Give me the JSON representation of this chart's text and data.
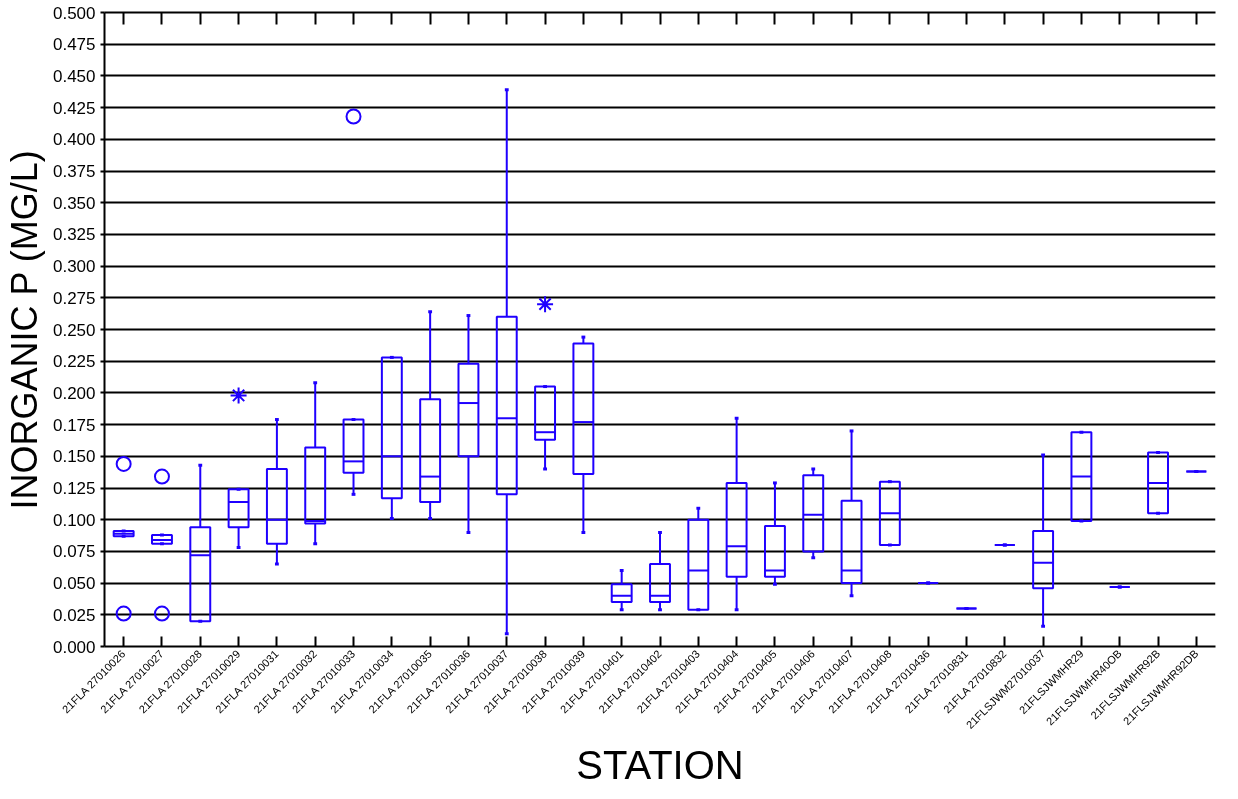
{
  "chart_data": {
    "type": "box",
    "xlabel": "STATION",
    "ylabel": "INORGANIC P (MG/L)",
    "categories": [
      "21FLA 27010026",
      "21FLA 27010027",
      "21FLA 27010028",
      "21FLA 27010029",
      "21FLA 27010031",
      "21FLA 27010032",
      "21FLA 27010033",
      "21FLA 27010034",
      "21FLA 27010035",
      "21FLA 27010036",
      "21FLA 27010037",
      "21FLA 27010038",
      "21FLA 27010039",
      "21FLA 27010401",
      "21FLA 27010402",
      "21FLA 27010403",
      "21FLA 27010404",
      "21FLA 27010405",
      "21FLA 27010406",
      "21FLA 27010407",
      "21FLA 27010408",
      "21FLA 27010436",
      "21FLA 27010831",
      "21FLA 27010832",
      "21FLSJWM27010037",
      "21FLSJWMHR29",
      "21FLSJWMHR40OB",
      "21FLSJWMHR92B",
      "21FLSJWMHR92DB"
    ],
    "series": [
      {
        "color": "#1f00ff",
        "marker": "circle",
        "boxes": [
          {
            "low": 0.087,
            "q1": 0.087,
            "median": 0.089,
            "q3": 0.091,
            "high": 0.091,
            "outliers": [
              0.026,
              0.144
            ]
          },
          {
            "low": 0.081,
            "q1": 0.081,
            "median": 0.084,
            "q3": 0.088,
            "high": 0.088,
            "outliers": [
              0.026,
              0.134
            ]
          },
          {
            "low": 0.02,
            "q1": 0.02,
            "median": 0.072,
            "q3": 0.094,
            "high": 0.143
          },
          {
            "low": 0.078,
            "q1": 0.094,
            "median": 0.114,
            "q3": 0.124,
            "high": 0.124
          },
          {
            "low": 0.065,
            "q1": 0.081,
            "median": 0.1,
            "q3": 0.14,
            "high": 0.179
          },
          {
            "low": 0.081,
            "q1": 0.097,
            "median": 0.099,
            "q3": 0.157,
            "high": 0.208
          },
          {
            "low": 0.12,
            "q1": 0.137,
            "median": 0.146,
            "q3": 0.179,
            "high": 0.179,
            "outliers": [
              0.418
            ]
          },
          {
            "low": 0.101,
            "q1": 0.117,
            "median": 0.15,
            "q3": 0.228,
            "high": 0.228
          },
          {
            "low": 0.101,
            "q1": 0.114,
            "median": 0.134,
            "q3": 0.195,
            "high": 0.264
          },
          {
            "low": 0.09,
            "q1": 0.15,
            "median": 0.192,
            "q3": 0.223,
            "high": 0.261
          },
          {
            "low": 0.01,
            "q1": 0.12,
            "median": 0.18,
            "q3": 0.26,
            "high": 0.439
          },
          {
            "low": 0.14,
            "q1": 0.163,
            "median": 0.169,
            "q3": 0.205,
            "high": 0.205
          },
          {
            "low": 0.09,
            "q1": 0.136,
            "median": 0.177,
            "q3": 0.239,
            "high": 0.244
          },
          {
            "low": 0.029,
            "q1": 0.035,
            "median": 0.04,
            "q3": 0.049,
            "high": 0.06
          },
          {
            "low": 0.029,
            "q1": 0.035,
            "median": 0.04,
            "q3": 0.065,
            "high": 0.09
          },
          {
            "low": 0.029,
            "q1": 0.029,
            "median": 0.06,
            "q3": 0.1,
            "high": 0.109
          },
          {
            "low": 0.029,
            "q1": 0.055,
            "median": 0.079,
            "q3": 0.129,
            "high": 0.18
          },
          {
            "low": 0.049,
            "q1": 0.055,
            "median": 0.06,
            "q3": 0.095,
            "high": 0.129
          },
          {
            "low": 0.07,
            "q1": 0.075,
            "median": 0.104,
            "q3": 0.135,
            "high": 0.14
          },
          {
            "low": 0.04,
            "q1": 0.05,
            "median": 0.06,
            "q3": 0.115,
            "high": 0.17
          },
          {
            "low": 0.08,
            "q1": 0.08,
            "median": 0.105,
            "q3": 0.13,
            "high": 0.13
          },
          {
            "low": 0.05,
            "q1": 0.05,
            "median": 0.05,
            "q3": 0.05,
            "high": 0.05
          },
          {
            "low": 0.03,
            "q1": 0.03,
            "median": 0.03,
            "q3": 0.03,
            "high": 0.03
          },
          {
            "low": 0.08,
            "q1": 0.08,
            "median": 0.08,
            "q3": 0.08,
            "high": 0.08
          },
          {
            "low": 0.016,
            "q1": 0.046,
            "median": 0.066,
            "q3": 0.091,
            "high": 0.151
          },
          {
            "low": 0.099,
            "q1": 0.099,
            "median": 0.134,
            "q3": 0.169,
            "high": 0.169
          },
          {
            "low": 0.047,
            "q1": 0.047,
            "median": 0.047,
            "q3": 0.047,
            "high": 0.047
          },
          {
            "low": 0.105,
            "q1": 0.105,
            "median": 0.129,
            "q3": 0.153,
            "high": 0.153
          },
          {
            "low": 0.138,
            "q1": 0.138,
            "median": 0.138,
            "q3": 0.138,
            "high": 0.138
          }
        ]
      },
      {
        "type": "scatter",
        "color": "#1f00ff",
        "marker": "cross",
        "x": [
          "21FLA 27010029",
          "21FLA 27010038"
        ],
        "values": [
          0.198,
          0.27
        ]
      }
    ],
    "ylim": [
      0,
      0.5
    ],
    "yticks": [
      {
        "value": 0,
        "label": "0.000"
      },
      {
        "value": 0.025,
        "label": "0.025"
      },
      {
        "value": 0.05,
        "label": "0.050"
      },
      {
        "value": 0.075,
        "label": "0.075"
      },
      {
        "value": 0.1,
        "label": "0.100"
      },
      {
        "value": 0.125,
        "label": "0.125"
      },
      {
        "value": 0.15,
        "label": "0.150"
      },
      {
        "value": 0.175,
        "label": "0.175"
      },
      {
        "value": 0.2,
        "label": "0.200"
      },
      {
        "value": 0.225,
        "label": "0.225"
      },
      {
        "value": 0.25,
        "label": "0.250"
      },
      {
        "value": 0.275,
        "label": "0.275"
      },
      {
        "value": 0.3,
        "label": "0.300"
      },
      {
        "value": 0.325,
        "label": "0.325"
      },
      {
        "value": 0.35,
        "label": "0.350"
      },
      {
        "value": 0.375,
        "label": "0.375"
      },
      {
        "value": 0.4,
        "label": "0.400"
      },
      {
        "value": 0.425,
        "label": "0.425"
      },
      {
        "value": 0.45,
        "label": "0.450"
      },
      {
        "value": 0.475,
        "label": "0.475"
      },
      {
        "value": 0.5,
        "label": "0.500"
      }
    ],
    "grid": "y"
  }
}
